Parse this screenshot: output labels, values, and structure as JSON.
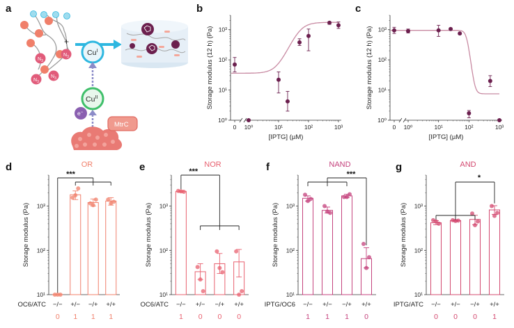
{
  "panel_letters": {
    "a": "a",
    "b": "b",
    "c": "c",
    "d": "d",
    "e": "e",
    "f": "f",
    "g": "g"
  },
  "schematic": {
    "plus": "+",
    "cu1_main": "Cu",
    "cu1_sup": "I",
    "cu2_main": "Cu",
    "cu2_sup": "II",
    "electron_main": "e",
    "electron_sup": "−",
    "protein_label": "MtrC",
    "azide_main": "N",
    "azide_sub": "3"
  },
  "colors": {
    "dark_purple": "#6b1f4e",
    "curve": "#c88aa2",
    "or_color": "#f07f6a",
    "nor_color": "#e8606f",
    "nand_color": "#c4417c",
    "and_color": "#d3486f",
    "cyan": "#2eb7e0",
    "green": "#3fbf6a",
    "salmon": "#e8706a"
  },
  "chart_data": [
    {
      "id": "b",
      "type": "scatter",
      "ylabel": "Storage modulus (12 h) (Pa)",
      "xlabel": "[IPTG] (µM)",
      "xticks": [
        "0",
        "10⁰",
        "10¹",
        "10²",
        "10³"
      ],
      "yticks": [
        "10⁰",
        "10¹",
        "10²",
        "10³"
      ],
      "ylim": [
        1,
        3000
      ],
      "points": [
        {
          "x": 0,
          "y": 70,
          "lo": 40,
          "hi": 120
        },
        {
          "x": 1,
          "y": 1,
          "lo": 1,
          "hi": 1
        },
        {
          "x": 10,
          "y": 22,
          "lo": 8,
          "hi": 40
        },
        {
          "x": 20,
          "y": 4.2,
          "lo": 2,
          "hi": 9
        },
        {
          "x": 50,
          "y": 380,
          "lo": 300,
          "hi": 500
        },
        {
          "x": 100,
          "y": 620,
          "lo": 200,
          "hi": 1050
        },
        {
          "x": 500,
          "y": 1700,
          "lo": 1500,
          "hi": 1800
        },
        {
          "x": 1000,
          "y": 1400,
          "lo": 1100,
          "hi": 1800
        }
      ],
      "fit": {
        "bottom": 36,
        "top": 1750,
        "ec50": 50,
        "hill": 2.3
      }
    },
    {
      "id": "c",
      "type": "scatter",
      "ylabel": "Storage modulus (12 h) (Pa)",
      "xlabel": "[IPTG] (µM)",
      "xticks": [
        "0",
        "10⁰",
        "10¹",
        "10²",
        "10³"
      ],
      "yticks": [
        "10⁰",
        "10¹",
        "10²",
        "10³"
      ],
      "ylim": [
        1,
        3000
      ],
      "points": [
        {
          "x": 0,
          "y": 950,
          "lo": 750,
          "hi": 1200
        },
        {
          "x": 1,
          "y": 900,
          "lo": 780,
          "hi": 1050
        },
        {
          "x": 10,
          "y": 950,
          "lo": 600,
          "hi": 1400
        },
        {
          "x": 25,
          "y": 1050,
          "lo": 1000,
          "hi": 1100
        },
        {
          "x": 50,
          "y": 750,
          "lo": 720,
          "hi": 780
        },
        {
          "x": 100,
          "y": 1.7,
          "lo": 1.2,
          "hi": 2.1
        },
        {
          "x": 500,
          "y": 20,
          "lo": 13,
          "hi": 30
        },
        {
          "x": 1000,
          "y": 1,
          "lo": 1,
          "hi": 1
        }
      ],
      "fit": {
        "bottom": 7.5,
        "top": 950,
        "ec50": 85,
        "hill": -8
      }
    },
    {
      "id": "d",
      "type": "bar",
      "title": "OR",
      "ylabel": "Storage modulus (Pa)",
      "cond_label": "OC6/ATC",
      "categories": [
        "−/−",
        "+/−",
        "−/+",
        "+/+"
      ],
      "outputs": [
        "0",
        "1",
        "1",
        "1"
      ],
      "values": [
        10,
        1800,
        1200,
        1300
      ],
      "err_lo": [
        10,
        1400,
        1000,
        1050
      ],
      "err_hi": [
        10,
        2200,
        1450,
        1550
      ],
      "points": [
        [
          10,
          10,
          10
        ],
        [
          1550,
          2500,
          1750
        ],
        [
          1150,
          1400,
          1050
        ],
        [
          1400,
          1250,
          1150
        ]
      ],
      "yticks": [
        "10¹",
        "10²",
        "10³"
      ],
      "ylim": [
        10,
        5000
      ],
      "significance": "***"
    },
    {
      "id": "e",
      "type": "bar",
      "title": "NOR",
      "ylabel": "Storage modulus (Pa)",
      "cond_label": "OC6/ATC",
      "categories": [
        "−/−",
        "+/−",
        "−/+",
        "+/+"
      ],
      "outputs": [
        "1",
        "0",
        "0",
        "0"
      ],
      "values": [
        2150,
        33,
        50,
        55
      ],
      "err_lo": [
        2050,
        22,
        30,
        25
      ],
      "err_hi": [
        2250,
        50,
        85,
        105
      ],
      "points": [
        [
          2200,
          2100,
          2150
        ],
        [
          42,
          12,
          22
        ],
        [
          95,
          32,
          40
        ],
        [
          95,
          12,
          10
        ]
      ],
      "yticks": [
        "10¹",
        "10²",
        "10³"
      ],
      "ylim": [
        10,
        5000
      ],
      "significance": "***"
    },
    {
      "id": "f",
      "type": "bar",
      "title": "NAND",
      "ylabel": "Storage modulus (Pa)",
      "cond_label": "IPTG/OC6",
      "categories": [
        "−/−",
        "+/−",
        "−/+",
        "+/+"
      ],
      "outputs": [
        "1",
        "1",
        "1",
        "0"
      ],
      "values": [
        1500,
        800,
        1700,
        65
      ],
      "err_lo": [
        1300,
        700,
        1550,
        40
      ],
      "err_hi": [
        1700,
        950,
        1850,
        115
      ],
      "points": [
        [
          1800,
          1450,
          1300
        ],
        [
          1000,
          700,
          750
        ],
        [
          1600,
          1850,
          1600
        ],
        [
          140,
          70,
          40
        ]
      ],
      "yticks": [
        "10¹",
        "10²",
        "10³"
      ],
      "ylim": [
        10,
        5000
      ],
      "significance": "***"
    },
    {
      "id": "g",
      "type": "bar",
      "title": "AND",
      "ylabel": "Storage modulus (Pa)",
      "cond_label": "IPTG/ATC",
      "categories": [
        "−/−",
        "+/−",
        "−/+",
        "+/+"
      ],
      "outputs": [
        "0",
        "0",
        "0",
        "1"
      ],
      "values": [
        420,
        470,
        500,
        820
      ],
      "err_lo": [
        380,
        450,
        380,
        650
      ],
      "err_hi": [
        470,
        490,
        620,
        1020
      ],
      "points": [
        [
          480,
          400,
          450
        ],
        [
          480,
          470,
          460
        ],
        [
          680,
          450,
          370
        ],
        [
          1000,
          700,
          600
        ]
      ],
      "yticks": [
        "10¹",
        "10²",
        "10³"
      ],
      "ylim": [
        10,
        5000
      ],
      "significance": "*"
    }
  ]
}
